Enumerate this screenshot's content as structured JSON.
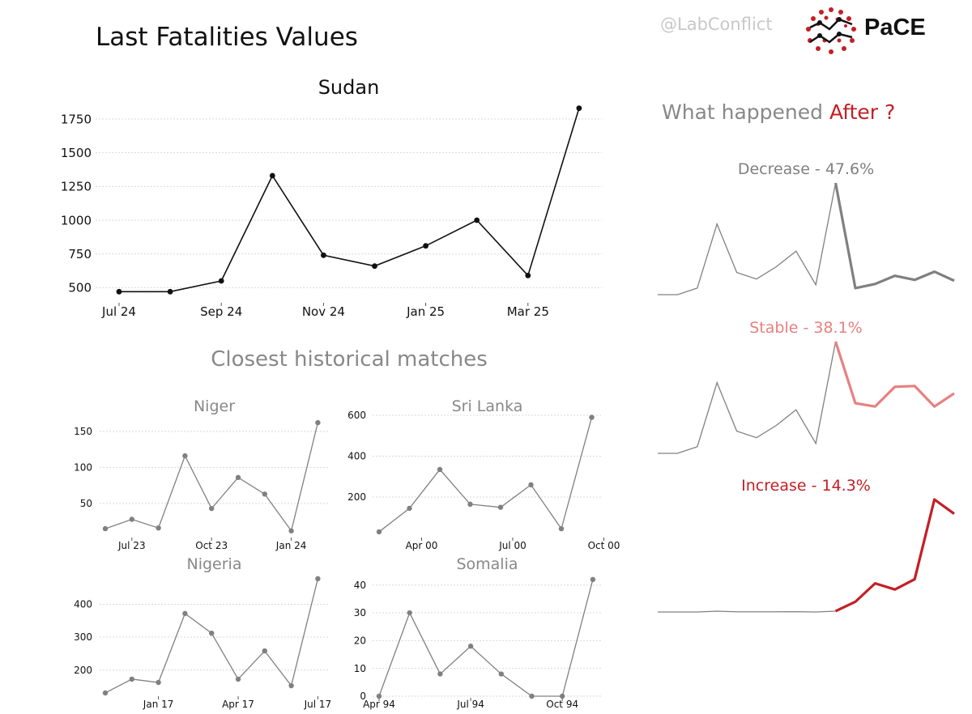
{
  "header": {
    "title": "Last Fatalities Values",
    "handle": "@LabConflict",
    "logo_text": "PaCE"
  },
  "matches_title": "Closest historical matches",
  "after": {
    "title_prefix": "What happened",
    "title_accent": "After ?"
  },
  "colors": {
    "main_line": "#111111",
    "match_line": "#808080",
    "decrease": "#808080",
    "stable": "#e88080",
    "increase": "#c41e24",
    "grid": "#d9d9d9"
  },
  "chart_data": [
    {
      "id": "sudan",
      "type": "line",
      "title": "Sudan",
      "x_count": 10,
      "values": [
        470,
        470,
        550,
        1330,
        740,
        660,
        810,
        1000,
        590,
        1830
      ],
      "ylim": [
        400,
        1900
      ],
      "yticks": [
        500,
        750,
        1000,
        1250,
        1500,
        1750
      ],
      "xticks": [
        {
          "index": 0,
          "label": "Jul 24"
        },
        {
          "index": 2,
          "label": "Sep 24"
        },
        {
          "index": 4,
          "label": "Nov 24"
        },
        {
          "index": 6,
          "label": "Jan 25"
        },
        {
          "index": 8,
          "label": "Mar 25"
        }
      ],
      "grid": true
    },
    {
      "id": "niger",
      "type": "line",
      "title": "Niger",
      "x_count": 10,
      "values": [
        15,
        28,
        16,
        116,
        43,
        86,
        63,
        12,
        162
      ],
      "ylim": [
        5,
        170
      ],
      "yticks": [
        50,
        100,
        150
      ],
      "xticks": [
        {
          "index": 1,
          "label": "Jul 23"
        },
        {
          "index": 4,
          "label": "Oct 23"
        },
        {
          "index": 7,
          "label": "Jan 24"
        }
      ],
      "grid": true
    },
    {
      "id": "srilanka",
      "type": "line",
      "title": "Sri Lanka",
      "x_count": 10,
      "values": [
        30,
        145,
        335,
        165,
        150,
        260,
        45,
        590
      ],
      "ylim": [
        10,
        620
      ],
      "yticks": [
        200,
        400,
        600
      ],
      "xticks": [
        {
          "index": 1.4,
          "label": "Apr 00"
        },
        {
          "index": 4.4,
          "label": "Jul 00"
        },
        {
          "index": 7.4,
          "label": "Oct 00"
        }
      ],
      "grid": true
    },
    {
      "id": "nigeria",
      "type": "line",
      "title": "Nigeria",
      "x_count": 10,
      "values": [
        130,
        172,
        162,
        372,
        312,
        172,
        258,
        152,
        478
      ],
      "ylim": [
        125,
        490
      ],
      "yticks": [
        200,
        300,
        400
      ],
      "xticks": [
        {
          "index": 2,
          "label": "Jan 17"
        },
        {
          "index": 5,
          "label": "Apr 17"
        },
        {
          "index": 8,
          "label": "Jul 17"
        }
      ],
      "grid": true
    },
    {
      "id": "somalia",
      "type": "line",
      "title": "Somalia",
      "x_count": 10,
      "values": [
        0,
        30,
        8,
        18,
        8,
        0,
        0,
        42
      ],
      "ylim": [
        0,
        44
      ],
      "yticks": [
        0,
        10,
        20,
        30,
        40
      ],
      "xticks": [
        {
          "index": 0,
          "label": "Apr 94"
        },
        {
          "index": 3,
          "label": "Jul 94"
        },
        {
          "index": 6,
          "label": "Oct 94"
        }
      ],
      "grid": true
    },
    {
      "id": "decrease",
      "type": "line",
      "title": "Decrease - 47.6%",
      "history": [
        470,
        470,
        550,
        1330,
        740,
        660,
        810,
        1000,
        590,
        1830
      ],
      "future": [
        550,
        600,
        700,
        650,
        750,
        640
      ]
    },
    {
      "id": "stable",
      "type": "line",
      "title": "Stable - 38.1%",
      "history": [
        470,
        470,
        550,
        1330,
        740,
        660,
        810,
        1000,
        590,
        1830
      ],
      "future": [
        1080,
        1040,
        1280,
        1290,
        1040,
        1200
      ]
    },
    {
      "id": "increase",
      "type": "line",
      "title": "Increase - 14.3%",
      "history": [
        500,
        500,
        500,
        520,
        505,
        505,
        505,
        508,
        500,
        520
      ],
      "future": [
        750,
        1200,
        1050,
        1300,
        3250,
        2900
      ]
    }
  ]
}
